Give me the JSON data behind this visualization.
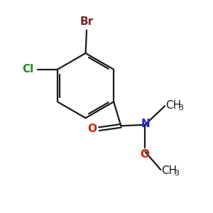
{
  "background_color": "#ffffff",
  "bond_color": "#1a1a1a",
  "atom_colors": {
    "Br": "#7b2020",
    "Cl": "#228B22",
    "O": "#cc2200",
    "N": "#2222cc"
  },
  "font_size_atom": 11,
  "font_size_sub": 8,
  "lw": 1.6
}
